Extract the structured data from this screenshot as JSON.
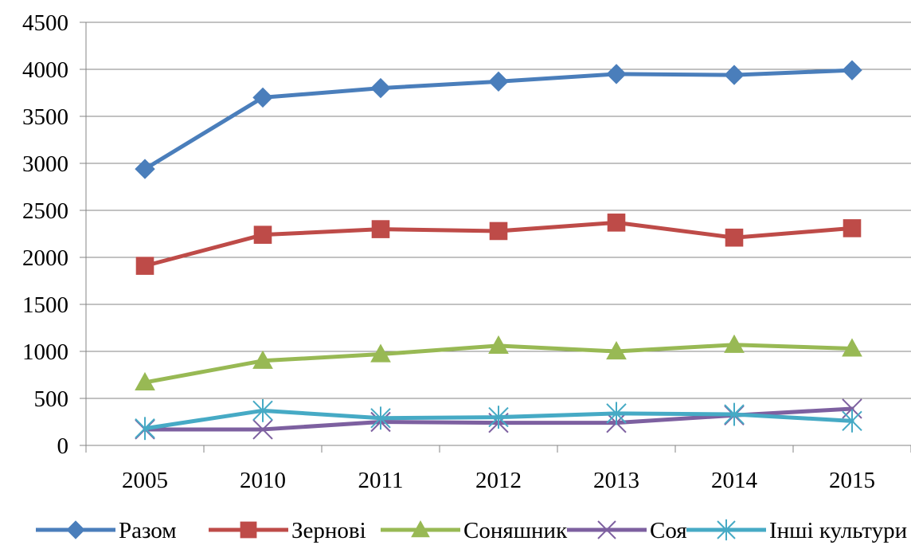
{
  "chart_data": {
    "type": "line",
    "categories": [
      "2005",
      "2010",
      "2011",
      "2012",
      "2013",
      "2014",
      "2015"
    ],
    "ylim": [
      0,
      4500
    ],
    "yticks": [
      0,
      500,
      1000,
      1500,
      2000,
      2500,
      3000,
      3500,
      4000,
      4500
    ],
    "grid": true,
    "legend_position": "bottom",
    "title": "",
    "xlabel": "",
    "ylabel": "",
    "series": [
      {
        "name": "Разом",
        "color": "#4A7EBB",
        "marker": "diamond",
        "values": [
          2940,
          3700,
          3800,
          3870,
          3950,
          3940,
          3990
        ]
      },
      {
        "name": "Зернові",
        "color": "#BE4B48",
        "marker": "square",
        "values": [
          1910,
          2240,
          2300,
          2280,
          2370,
          2210,
          2310
        ]
      },
      {
        "name": "Соняшник",
        "color": "#98B954",
        "marker": "triangle",
        "values": [
          670,
          900,
          970,
          1060,
          1000,
          1070,
          1030
        ]
      },
      {
        "name": "Соя",
        "color": "#7D60A0",
        "marker": "x",
        "values": [
          170,
          170,
          250,
          240,
          240,
          320,
          390
        ]
      },
      {
        "name": "Інші культури",
        "color": "#46AAC5",
        "marker": "star",
        "values": [
          180,
          370,
          290,
          300,
          340,
          330,
          260
        ]
      }
    ]
  }
}
